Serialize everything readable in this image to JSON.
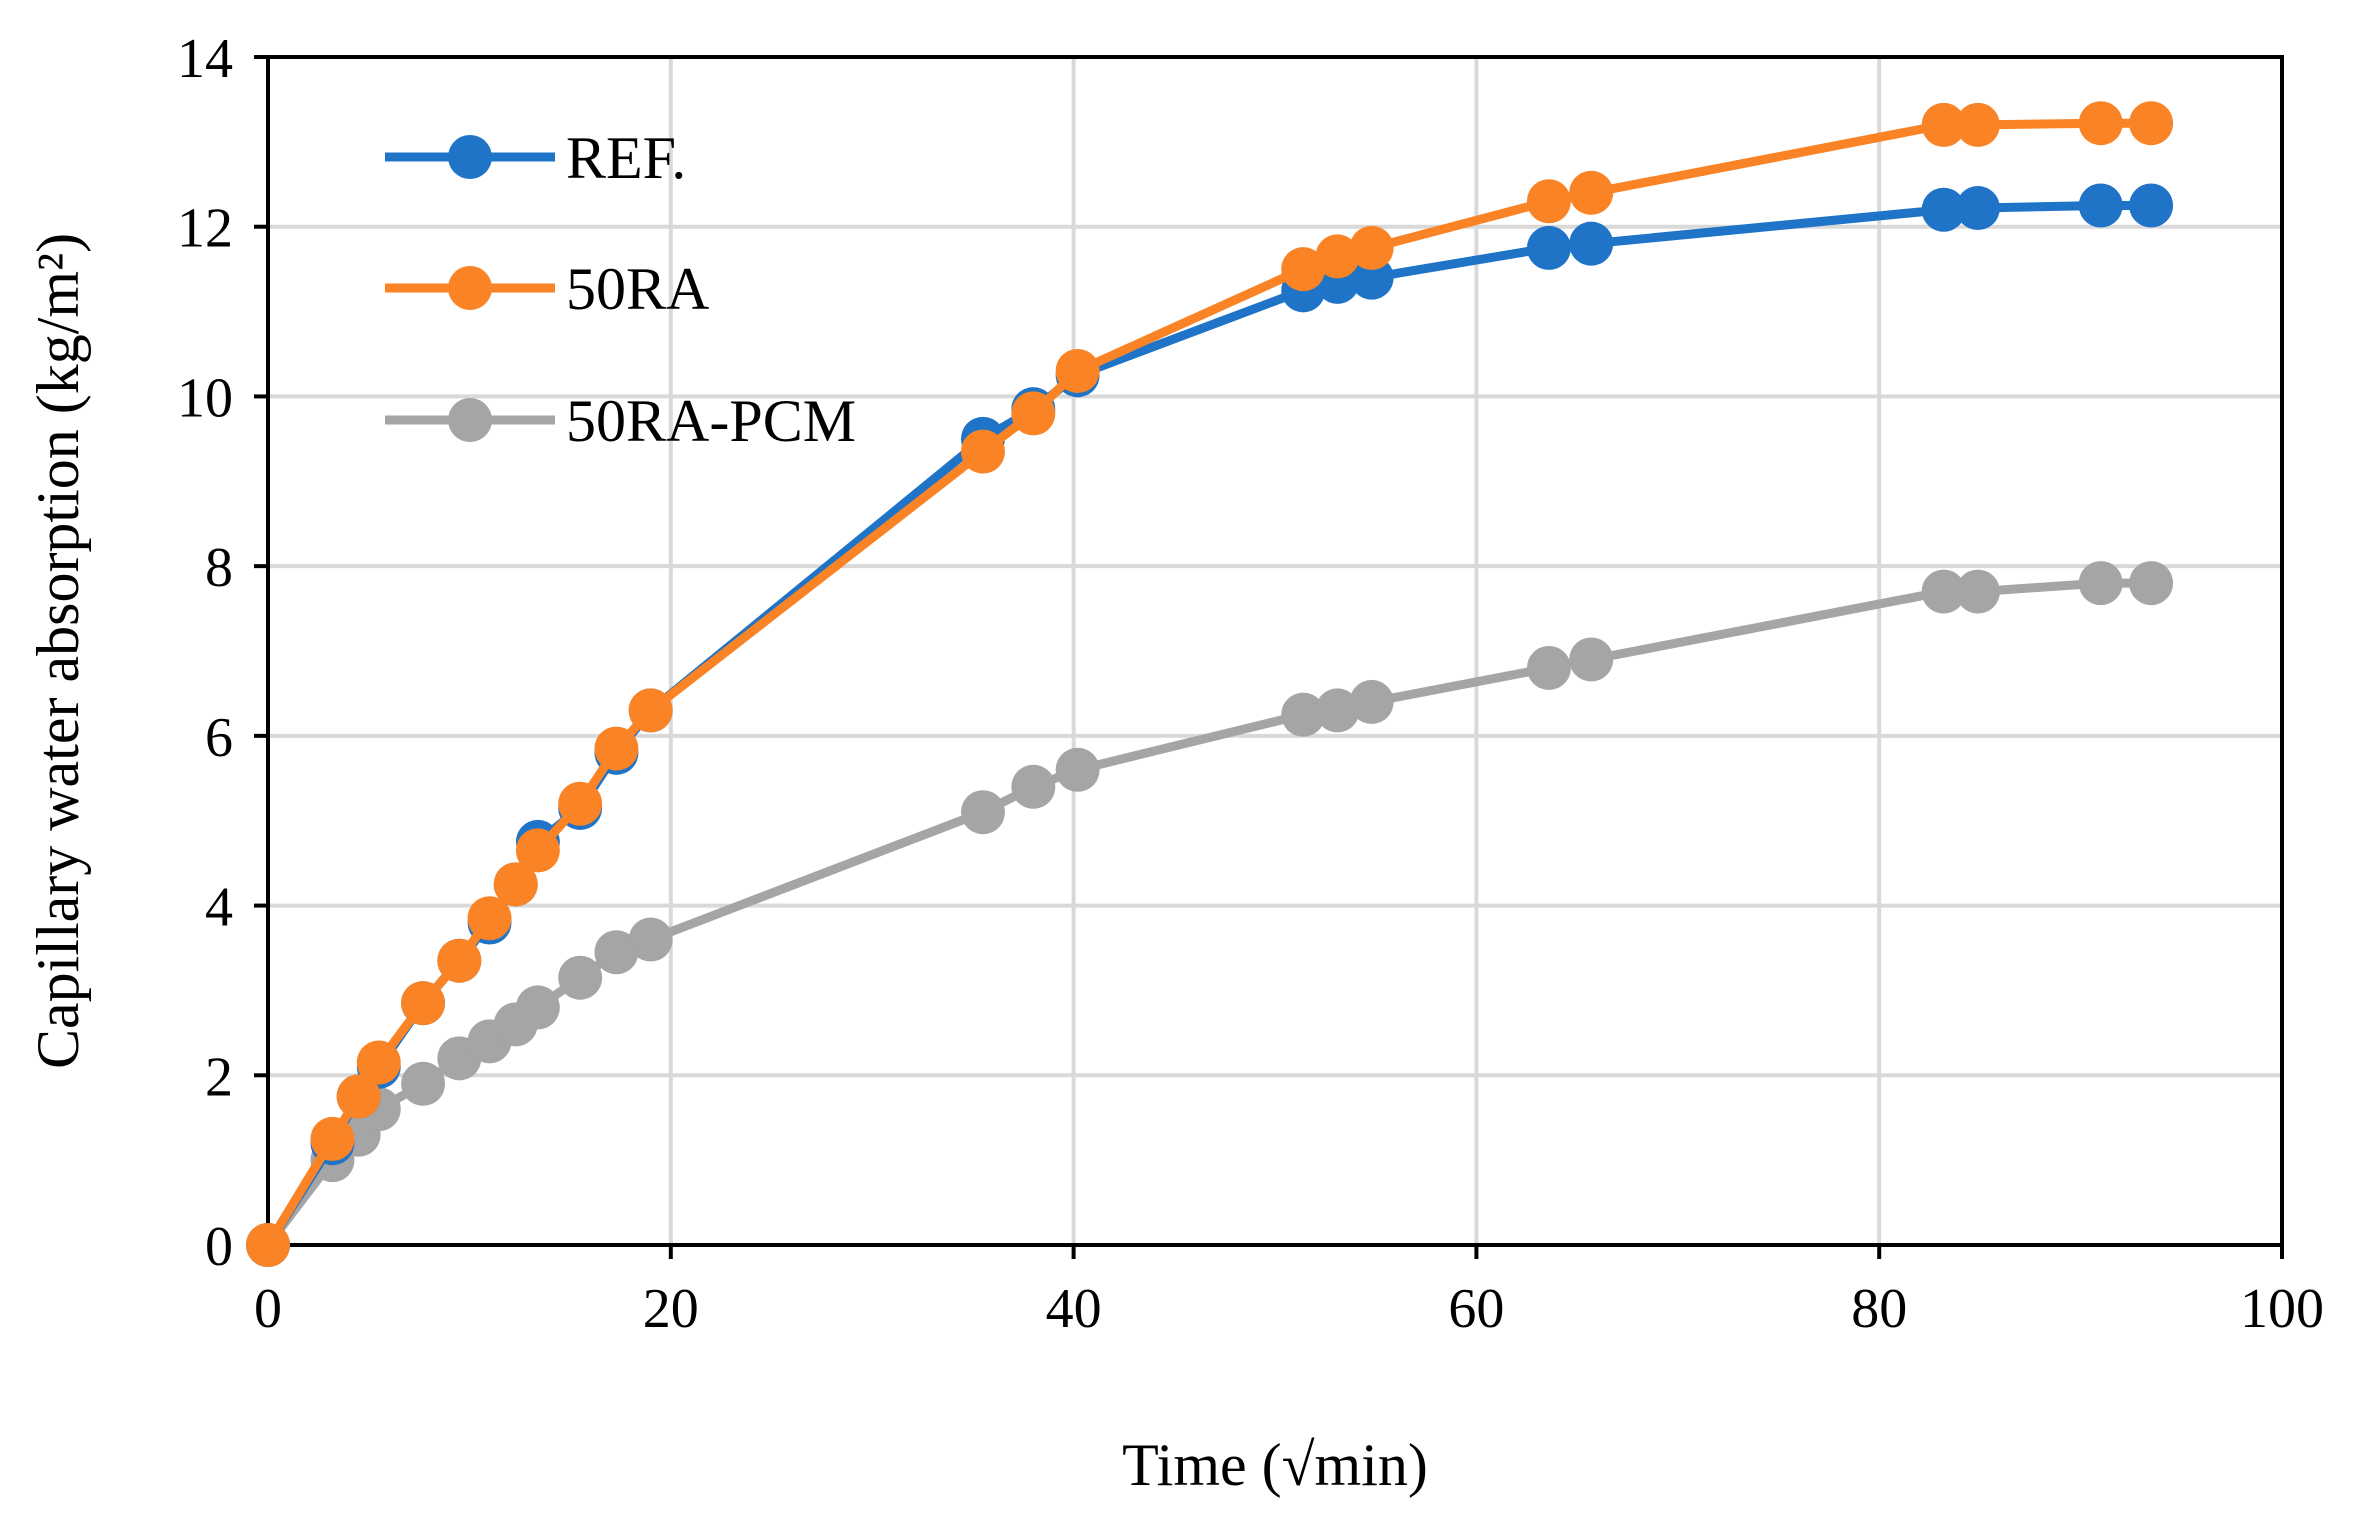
{
  "chart_data": {
    "type": "line",
    "title": "",
    "xlabel": "Time (√min)",
    "ylabel": "Capillary water absorption (kg/m²)",
    "xlim": [
      0,
      100
    ],
    "ylim": [
      0,
      14
    ],
    "xticks": [
      0,
      20,
      40,
      60,
      80,
      100
    ],
    "yticks": [
      0,
      2,
      4,
      6,
      8,
      10,
      12,
      14
    ],
    "xtick_labels": [
      "0",
      "20",
      "40",
      "60",
      "80",
      "100"
    ],
    "ytick_labels": [
      "0",
      "2",
      "4",
      "6",
      "8",
      "10",
      "12",
      "14"
    ],
    "grid": true,
    "legend_position": "top-left",
    "x": [
      0,
      3.2,
      4.5,
      5.5,
      7.7,
      9.5,
      11,
      12.3,
      13.4,
      15.5,
      17.3,
      19,
      35.5,
      38,
      40.2,
      51.4,
      53.1,
      54.8,
      63.6,
      65.7,
      83.2,
      84.9,
      91,
      93.5
    ],
    "series": [
      {
        "name": "REF.",
        "color": "#1f74c8",
        "values": [
          0,
          1.2,
          1.75,
          2.1,
          2.85,
          3.35,
          3.8,
          4.25,
          4.75,
          5.15,
          5.8,
          6.3,
          9.5,
          9.85,
          10.25,
          11.25,
          11.35,
          11.4,
          11.75,
          11.8,
          12.2,
          12.22,
          12.25,
          12.25
        ]
      },
      {
        "name": "50RA",
        "color": "#f98325",
        "values": [
          0,
          1.25,
          1.75,
          2.15,
          2.85,
          3.35,
          3.85,
          4.25,
          4.65,
          5.2,
          5.85,
          6.3,
          9.35,
          9.8,
          10.3,
          11.5,
          11.65,
          11.75,
          12.3,
          12.4,
          13.2,
          13.2,
          13.22,
          13.22
        ]
      },
      {
        "name": "50RA-PCM",
        "color": "#a5a5a5",
        "values": [
          0,
          1.0,
          1.3,
          1.6,
          1.9,
          2.2,
          2.4,
          2.6,
          2.8,
          3.15,
          3.45,
          3.6,
          5.1,
          5.4,
          5.6,
          6.25,
          6.3,
          6.4,
          6.8,
          6.9,
          7.7,
          7.7,
          7.8,
          7.8
        ]
      }
    ]
  }
}
